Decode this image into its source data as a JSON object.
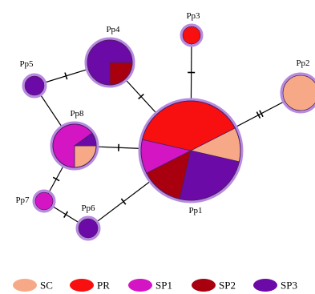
{
  "colors": {
    "SC": "#f7a987",
    "PR": "#f80f0f",
    "SP1": "#d315c4",
    "SP2": "#a8000f",
    "SP3": "#6c0aa8",
    "halo": "#b78ae0"
  },
  "nodes": {
    "Pp1": {
      "label": "Pp1",
      "composition": [
        {
          "group": "SC",
          "share": 0.111
        },
        {
          "group": "SP3",
          "share": 0.25
        },
        {
          "group": "SP2",
          "share": 0.139
        },
        {
          "group": "SP1",
          "share": 0.111
        },
        {
          "group": "PR",
          "share": 0.389
        }
      ]
    },
    "Pp2": {
      "label": "Pp2",
      "composition": [
        {
          "group": "SC",
          "share": 1
        }
      ]
    },
    "Pp3": {
      "label": "Pp3",
      "composition": [
        {
          "group": "PR",
          "share": 1
        }
      ]
    },
    "Pp4": {
      "label": "Pp4",
      "composition": [
        {
          "group": "SP2",
          "share": 0.25
        },
        {
          "group": "SP3",
          "share": 0.75
        }
      ]
    },
    "Pp5": {
      "label": "Pp5",
      "composition": [
        {
          "group": "SP3",
          "share": 1
        }
      ]
    },
    "Pp6": {
      "label": "Pp6",
      "composition": [
        {
          "group": "SP3",
          "share": 1
        }
      ]
    },
    "Pp7": {
      "label": "Pp7",
      "composition": [
        {
          "group": "SP1",
          "share": 1
        }
      ]
    },
    "Pp8": {
      "label": "Pp8",
      "composition": [
        {
          "group": "SC",
          "share": 0.25
        },
        {
          "group": "SP1",
          "share": 0.65
        },
        {
          "group": "SP3",
          "share": 0.1
        }
      ]
    }
  },
  "edges": [
    {
      "from": "Pp1",
      "to": "Pp2",
      "mutations": 2
    },
    {
      "from": "Pp1",
      "to": "Pp3",
      "mutations": 1
    },
    {
      "from": "Pp1",
      "to": "Pp4",
      "mutations": 1
    },
    {
      "from": "Pp1",
      "to": "Pp8",
      "mutations": 1
    },
    {
      "from": "Pp1",
      "to": "Pp6",
      "mutations": 1
    },
    {
      "from": "Pp4",
      "to": "Pp5",
      "mutations": 1
    },
    {
      "from": "Pp5",
      "to": "Pp8",
      "mutations": 0
    },
    {
      "from": "Pp8",
      "to": "Pp7",
      "mutations": 1
    },
    {
      "from": "Pp7",
      "to": "Pp6",
      "mutations": 1
    }
  ],
  "legend": [
    {
      "group": "SC",
      "label": "SC"
    },
    {
      "group": "PR",
      "label": "PR"
    },
    {
      "group": "SP1",
      "label": "SP1"
    },
    {
      "group": "SP2",
      "label": "SP2"
    },
    {
      "group": "SP3",
      "label": "SP3"
    }
  ]
}
